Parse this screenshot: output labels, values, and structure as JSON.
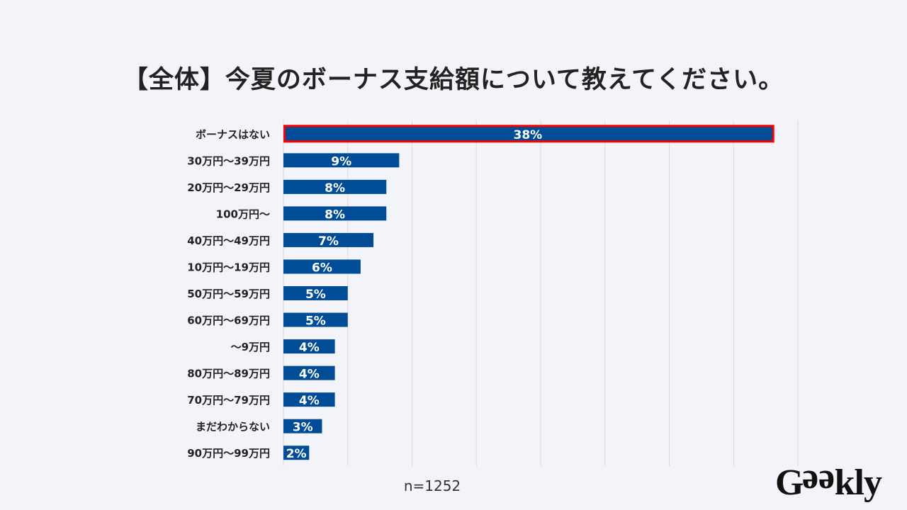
{
  "title": "【全体】今夏のボーナス支給額について教えてください。",
  "sample_note": "n=1252",
  "logo": "Geekly",
  "colors": {
    "bar": "#004c97",
    "highlight_border": "#ff0000",
    "background": "#f3f4f9",
    "grid": "#d9d9d9"
  },
  "chart_data": {
    "type": "bar",
    "orientation": "horizontal",
    "title": "【全体】今夏のボーナス支給額について教えてください。",
    "categories": [
      "ボーナスはない",
      "30万円～39万円",
      "20万円～29万円",
      "100万円～",
      "40万円～49万円",
      "10万円～19万円",
      "50万円～59万円",
      "60万円～69万円",
      "～9万円",
      "80万円～89万円",
      "70万円～79万円",
      "まだわからない",
      "90万円～99万円"
    ],
    "values": [
      38,
      9,
      8,
      8,
      7,
      6,
      5,
      5,
      4,
      4,
      4,
      3,
      2
    ],
    "data_labels": [
      "38%",
      "9%",
      "8%",
      "8%",
      "7%",
      "6%",
      "5%",
      "5%",
      "4%",
      "4%",
      "4%",
      "3%",
      "2%"
    ],
    "unit": "%",
    "xlim": [
      0,
      40
    ],
    "grid_step": 5,
    "grid": true,
    "highlighted_category": "ボーナスはない",
    "legend": "none"
  }
}
